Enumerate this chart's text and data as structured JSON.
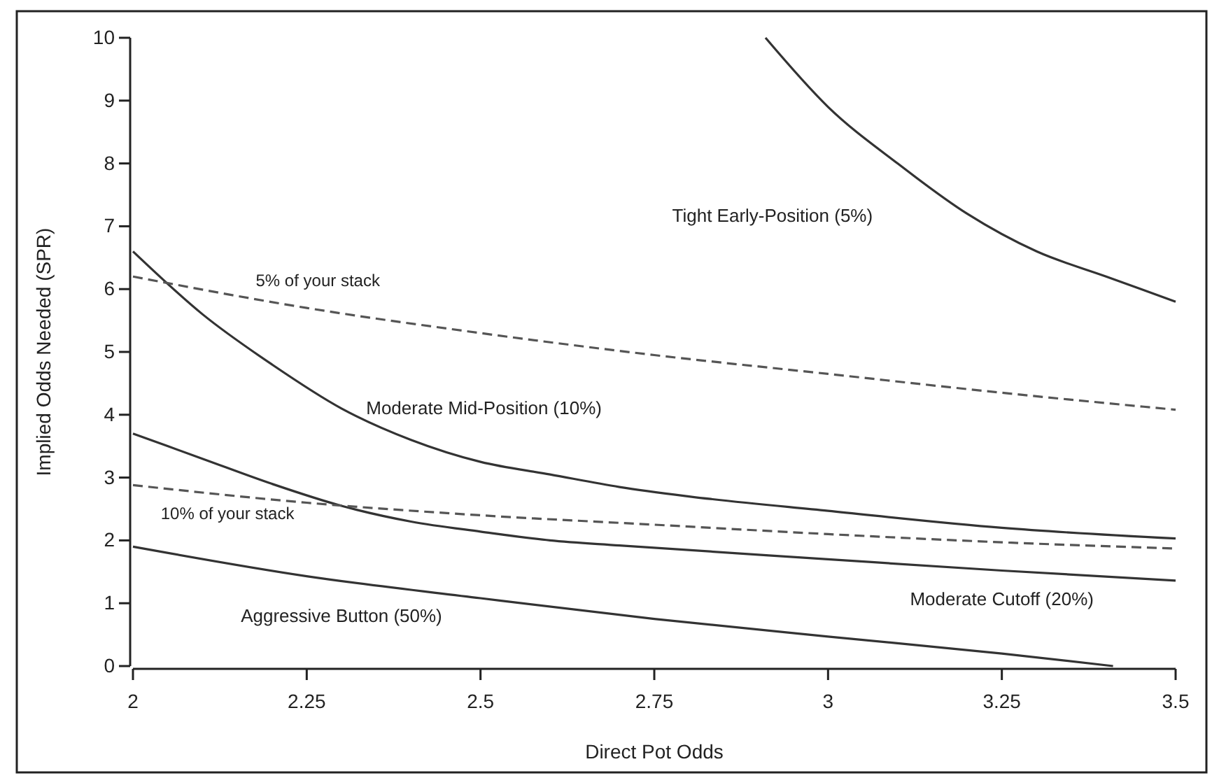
{
  "chart_data": {
    "type": "line",
    "xlabel": "Direct Pot Odds",
    "ylabel": "Implied Odds Needed (SPR)",
    "xlim": [
      2,
      3.5
    ],
    "xticks": [
      2,
      2.25,
      2.5,
      2.75,
      3,
      3.25,
      3.5
    ],
    "ylim": [
      0,
      10
    ],
    "yticks": [
      0,
      1,
      2,
      3,
      4,
      5,
      6,
      7,
      8,
      9,
      10
    ],
    "grid": false,
    "marker": "none",
    "series": [
      {
        "name": "Tight Early-Position (5%)",
        "color": "#333333",
        "line_style": "solid",
        "x": [
          2.91,
          3.0,
          3.1,
          3.2,
          3.3,
          3.4,
          3.5
        ],
        "values": [
          10,
          8.9,
          8.0,
          7.2,
          6.6,
          6.2,
          5.8
        ]
      },
      {
        "name": "Moderate Mid-Position (10%)",
        "color": "#333333",
        "line_style": "solid",
        "x": [
          2.0,
          2.1,
          2.2,
          2.3,
          2.4,
          2.5,
          2.6,
          2.7,
          2.8,
          3.0,
          3.25,
          3.5
        ],
        "values": [
          6.6,
          5.6,
          4.8,
          4.1,
          3.6,
          3.25,
          3.05,
          2.85,
          2.7,
          2.47,
          2.2,
          2.03
        ]
      },
      {
        "name": "Moderate Cutoff (20%)",
        "color": "#333333",
        "line_style": "solid",
        "x": [
          2.0,
          2.1,
          2.2,
          2.3,
          2.4,
          2.5,
          2.6,
          2.7,
          3.0,
          3.25,
          3.5
        ],
        "values": [
          3.7,
          3.3,
          2.9,
          2.55,
          2.3,
          2.14,
          2.0,
          1.92,
          1.7,
          1.52,
          1.36
        ]
      },
      {
        "name": "Aggressive Button (50%)",
        "color": "#333333",
        "line_style": "solid",
        "x": [
          2.0,
          2.25,
          2.5,
          2.75,
          3.0,
          3.25,
          3.41
        ],
        "values": [
          1.9,
          1.43,
          1.08,
          0.75,
          0.47,
          0.2,
          0
        ]
      },
      {
        "name": "5% of your stack",
        "color": "#555555",
        "line_style": "dashed",
        "x": [
          2.0,
          2.25,
          2.5,
          2.75,
          3.0,
          3.25,
          3.5
        ],
        "values": [
          6.2,
          5.7,
          5.3,
          4.95,
          4.65,
          4.35,
          4.08
        ]
      },
      {
        "name": "10% of your stack",
        "color": "#555555",
        "line_style": "dashed",
        "x": [
          2.0,
          2.25,
          2.5,
          2.75,
          3.0,
          3.25,
          3.5
        ],
        "values": [
          2.88,
          2.6,
          2.4,
          2.25,
          2.1,
          1.97,
          1.87
        ]
      }
    ]
  }
}
